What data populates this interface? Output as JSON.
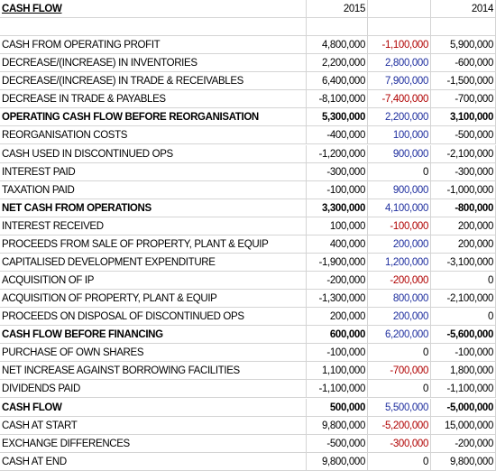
{
  "header": {
    "title": "CASH FLOW",
    "year_a": "2015",
    "year_b": "2014"
  },
  "rows": [
    {
      "cells": [
        "CASH FROM OPERATING PROFIT",
        "4,800,000",
        "-1,100,000",
        "5,900,000"
      ]
    },
    {
      "cells": [
        "DECREASE/(INCREASE) IN INVENTORIES",
        "2,200,000",
        "2,800,000",
        "-600,000"
      ]
    },
    {
      "cells": [
        "DECREASE/(INCREASE) IN TRADE & RECEIVABLES",
        "6,400,000",
        "7,900,000",
        "-1,500,000"
      ]
    },
    {
      "cells": [
        "DECREASE IN TRADE & PAYABLES",
        "-8,100,000",
        "-7,400,000",
        "-700,000"
      ]
    },
    {
      "cells": [
        "OPERATING CASH FLOW BEFORE REORGANISATION",
        "5,300,000",
        "2,200,000",
        "3,100,000"
      ],
      "bold": true
    },
    {
      "cells": [
        "REORGANISATION COSTS",
        "-400,000",
        "100,000",
        "-500,000"
      ]
    },
    {
      "cells": [
        "CASH USED IN DISCONTINUED OPS",
        "-1,200,000",
        "900,000",
        "-2,100,000"
      ]
    },
    {
      "cells": [
        "INTEREST PAID",
        "-300,000",
        "0",
        "-300,000"
      ]
    },
    {
      "cells": [
        "TAXATION PAID",
        "-100,000",
        "900,000",
        "-1,000,000"
      ]
    },
    {
      "cells": [
        "NET CASH FROM OPERATIONS",
        "3,300,000",
        "4,100,000",
        "-800,000"
      ],
      "bold": true
    },
    {
      "cells": [
        "INTEREST RECEIVED",
        "100,000",
        "-100,000",
        "200,000"
      ]
    },
    {
      "cells": [
        "PROCEEDS FROM SALE OF PROPERTY, PLANT & EQUIP",
        "400,000",
        "200,000",
        "200,000"
      ]
    },
    {
      "cells": [
        "CAPITALISED DEVELOPMENT EXPENDITURE",
        "-1,900,000",
        "1,200,000",
        "-3,100,000"
      ]
    },
    {
      "cells": [
        "ACQUISITION OF IP",
        "-200,000",
        "-200,000",
        "0"
      ]
    },
    {
      "cells": [
        "ACQUISITION OF PROPERTY, PLANT & EQUIP",
        "-1,300,000",
        "800,000",
        "-2,100,000"
      ]
    },
    {
      "cells": [
        "PROCEEDS ON DISPOSAL OF DISCONTINUED OPS",
        "200,000",
        "200,000",
        "0"
      ]
    },
    {
      "cells": [
        "CASH FLOW BEFORE FINANCING",
        "600,000",
        "6,200,000",
        "-5,600,000"
      ],
      "bold": true
    },
    {
      "cells": [
        "PURCHASE OF OWN SHARES",
        "-100,000",
        "0",
        "-100,000"
      ]
    },
    {
      "cells": [
        "NET INCREASE AGAINST BORROWING FACILITIES",
        "1,100,000",
        "-700,000",
        "1,800,000"
      ]
    },
    {
      "cells": [
        "DIVIDENDS PAID",
        "-1,100,000",
        "0",
        "-1,100,000"
      ]
    },
    {
      "cells": [
        "CASH FLOW",
        "500,000",
        "5,500,000",
        "-5,000,000"
      ],
      "bold": true
    },
    {
      "cells": [
        "CASH AT START",
        "9,800,000",
        "-5,200,000",
        "15,000,000"
      ]
    },
    {
      "cells": [
        "EXCHANGE DIFFERENCES",
        "-500,000",
        "-300,000",
        "-200,000"
      ]
    },
    {
      "cells": [
        "CASH AT END",
        "9,800,000",
        "0",
        "9,800,000"
      ]
    }
  ]
}
